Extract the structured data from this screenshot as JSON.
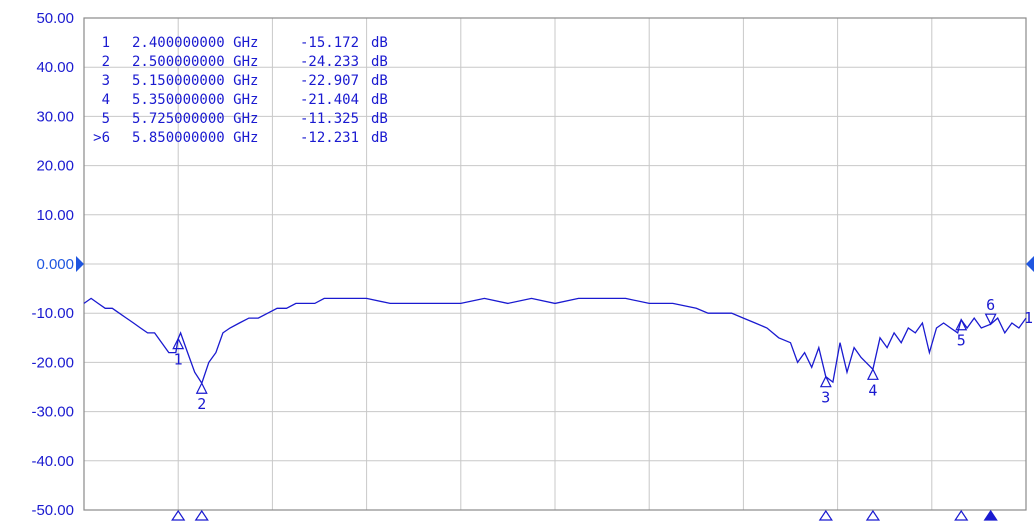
{
  "chart_data": {
    "type": "line",
    "ylim": [
      -50,
      50
    ],
    "xlim_ghz": [
      2.0,
      6.0
    ],
    "y_ticks": [
      "50.00",
      "40.00",
      "30.00",
      "20.00",
      "10.00",
      "0.000",
      "-10.00",
      "-20.00",
      "-30.00",
      "-40.00",
      "-50.00"
    ],
    "y_tick_values": [
      50,
      40,
      30,
      20,
      10,
      0,
      -10,
      -20,
      -30,
      -40,
      -50
    ],
    "grid": true,
    "reference_level": 0,
    "trace_end_label": "1",
    "series": [
      {
        "x": [
          2.0,
          2.03,
          2.06,
          2.09,
          2.12,
          2.15,
          2.18,
          2.21,
          2.24,
          2.27,
          2.3,
          2.33,
          2.36,
          2.39,
          2.4,
          2.41,
          2.44,
          2.47,
          2.5,
          2.53,
          2.56,
          2.59,
          2.62,
          2.66,
          2.7,
          2.74,
          2.78,
          2.82,
          2.86,
          2.9,
          2.94,
          2.98,
          3.02,
          3.1,
          3.2,
          3.3,
          3.4,
          3.5,
          3.6,
          3.7,
          3.8,
          3.9,
          4.0,
          4.1,
          4.2,
          4.3,
          4.4,
          4.5,
          4.6,
          4.65,
          4.7,
          4.75,
          4.8,
          4.85,
          4.9,
          4.95,
          5.0,
          5.03,
          5.06,
          5.09,
          5.12,
          5.15,
          5.18,
          5.21,
          5.24,
          5.27,
          5.3,
          5.35,
          5.38,
          5.41,
          5.44,
          5.47,
          5.5,
          5.53,
          5.56,
          5.59,
          5.62,
          5.65,
          5.68,
          5.71,
          5.725,
          5.75,
          5.78,
          5.81,
          5.85,
          5.88,
          5.91,
          5.94,
          5.97,
          6.0
        ],
        "y": [
          -8,
          -7,
          -8,
          -9,
          -9,
          -10,
          -11,
          -12,
          -13,
          -14,
          -14,
          -16,
          -18,
          -18,
          -15.172,
          -14,
          -18,
          -22,
          -24.233,
          -20,
          -18,
          -14,
          -13,
          -12,
          -11,
          -11,
          -10,
          -9,
          -9,
          -8,
          -8,
          -8,
          -7,
          -7,
          -7,
          -8,
          -8,
          -8,
          -8,
          -7,
          -8,
          -7,
          -8,
          -7,
          -7,
          -7,
          -8,
          -8,
          -9,
          -10,
          -10,
          -10,
          -11,
          -12,
          -13,
          -15,
          -16,
          -20,
          -18,
          -21,
          -17,
          -22.907,
          -24,
          -16,
          -22,
          -17,
          -19,
          -21.404,
          -15,
          -17,
          -14,
          -16,
          -13,
          -14,
          -12,
          -18,
          -13,
          -12,
          -13,
          -14,
          -11.325,
          -13,
          -11,
          -13,
          -12.231,
          -11,
          -14,
          -12,
          -13,
          -11
        ]
      }
    ],
    "markers": [
      {
        "id": "1",
        "freq": "2.400000000 GHz",
        "value": "-15.172",
        "unit": "dB",
        "x": 2.4,
        "y": -15.172,
        "active": false,
        "list_label": "1",
        "marker_label": "1",
        "label_pos": "below",
        "chevron": "up"
      },
      {
        "id": "2",
        "freq": "2.500000000 GHz",
        "value": "-24.233",
        "unit": "dB",
        "x": 2.5,
        "y": -24.233,
        "active": false,
        "list_label": "2",
        "marker_label": "2",
        "label_pos": "below",
        "chevron": "up"
      },
      {
        "id": "3",
        "freq": "5.150000000 GHz",
        "value": "-22.907",
        "unit": "dB",
        "x": 5.15,
        "y": -22.907,
        "active": false,
        "list_label": "3",
        "marker_label": "3",
        "label_pos": "below",
        "chevron": "up"
      },
      {
        "id": "4",
        "freq": "5.350000000 GHz",
        "value": "-21.404",
        "unit": "dB",
        "x": 5.35,
        "y": -21.404,
        "active": false,
        "list_label": "4",
        "marker_label": "4",
        "label_pos": "below",
        "chevron": "up"
      },
      {
        "id": "5",
        "freq": "5.725000000 GHz",
        "value": "-11.325",
        "unit": "dB",
        "x": 5.725,
        "y": -11.325,
        "active": false,
        "list_label": "5",
        "marker_label": "5",
        "label_pos": "below",
        "chevron": "up"
      },
      {
        "id": "6",
        "freq": "5.850000000 GHz",
        "value": "-12.231",
        "unit": "dB",
        "x": 5.85,
        "y": -12.231,
        "active": true,
        "list_label": ">6",
        "marker_label": "6",
        "label_pos": "above",
        "chevron": "down"
      }
    ],
    "colors": {
      "trace": "#1a1ad0",
      "axis_text": "#1a1ad0",
      "grid": "#c8c8c8",
      "frame": "#8a8a8a",
      "zero_tick": "#1f56e0"
    }
  }
}
